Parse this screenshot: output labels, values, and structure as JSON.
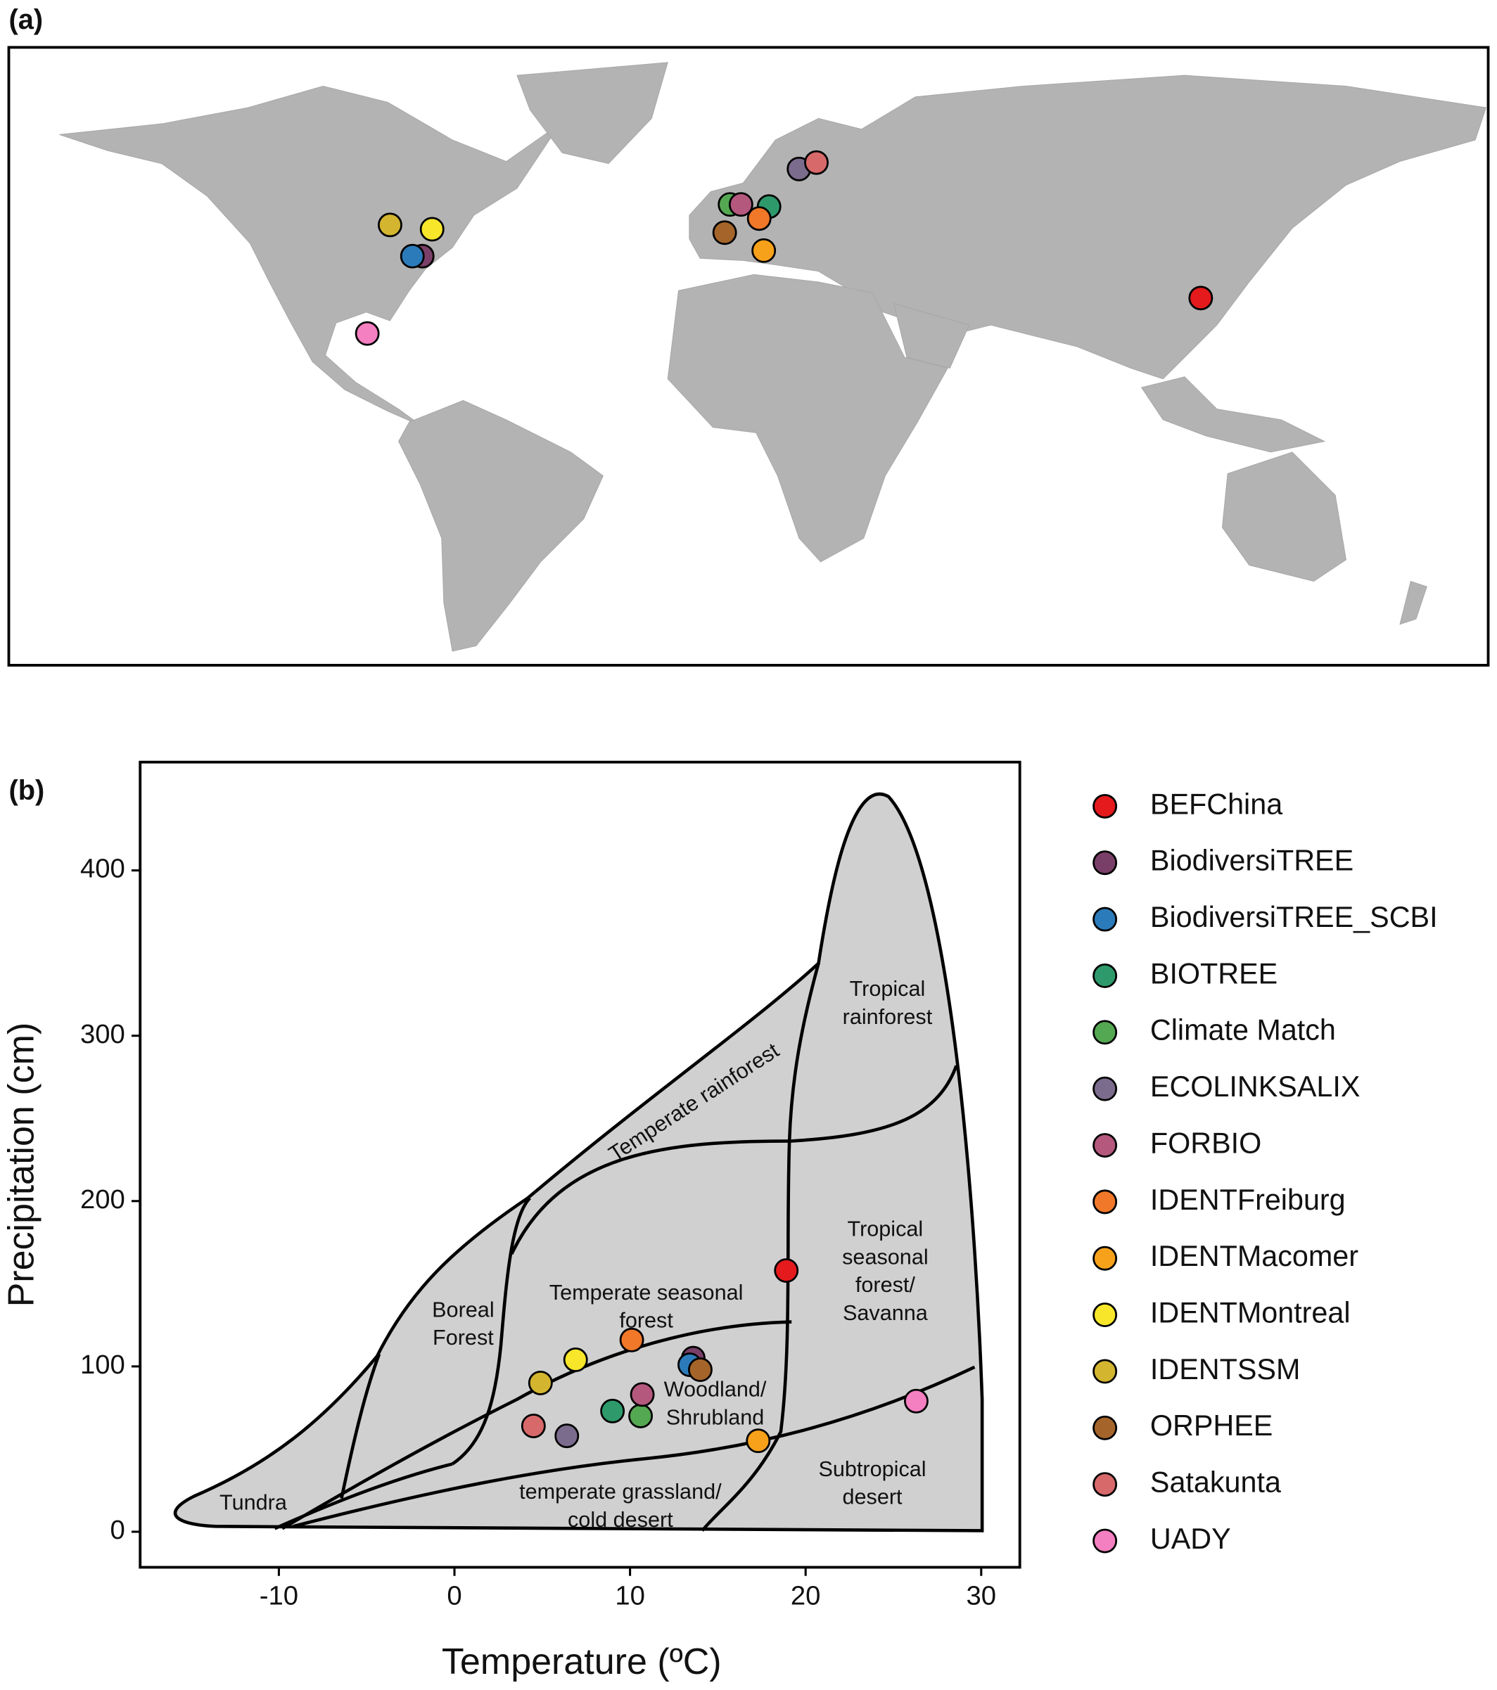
{
  "chart_data": [
    {
      "type": "map",
      "panel_label": "(a)",
      "lon": [
        117.9,
        -87.5,
        -90.1,
        4.0,
        -6.3,
        11.9,
        -3.4,
        1.4,
        2.6,
        -84.9,
        -96.0,
        -7.7,
        16.5,
        -102.0
      ],
      "lat": [
        29.0,
        38.8,
        38.8,
        50.4,
        50.9,
        59.2,
        50.9,
        47.6,
        40.1,
        45.1,
        46.1,
        44.3,
        60.7,
        20.7
      ],
      "colors": [
        "#e41a1c",
        "#7a3f68",
        "#2b7bba",
        "#2e9a6c",
        "#55a852",
        "#7b6b8c",
        "#b4587e",
        "#f07828",
        "#f7a11a",
        "#f7e62a",
        "#d3b52f",
        "#a5652a",
        "#d8696a",
        "#f47fc1"
      ]
    },
    {
      "type": "scatter",
      "panel_label": "(b)",
      "x_label": "Temperature (ºC)",
      "y_label": "Precipitation (cm)",
      "xlim": [
        -17.9,
        32.2
      ],
      "ylim": [
        -21.5,
        465.5
      ],
      "xticks": [
        -10,
        0,
        10,
        20,
        30
      ],
      "yticks": [
        0,
        100,
        200,
        300,
        400
      ],
      "series": [
        {
          "name": "BEFChina",
          "color": "#e41a1c",
          "x": [
            18.9
          ],
          "values": [
            158
          ]
        },
        {
          "name": "BiodiversiTREE",
          "color": "#7a3f68",
          "x": [
            13.6
          ],
          "values": [
            105
          ]
        },
        {
          "name": "BiodiversiTREE_SCBI",
          "color": "#2b7bba",
          "x": [
            13.4
          ],
          "values": [
            101
          ]
        },
        {
          "name": "BIOTREE",
          "color": "#2e9a6c",
          "x": [
            9.0
          ],
          "values": [
            73
          ]
        },
        {
          "name": "Climate Match",
          "color": "#55a852",
          "x": [
            10.6
          ],
          "values": [
            70
          ]
        },
        {
          "name": "ECOLINKSALIX",
          "color": "#7b6b8c",
          "x": [
            6.4
          ],
          "values": [
            58
          ]
        },
        {
          "name": "FORBIO",
          "color": "#b4587e",
          "x": [
            10.7
          ],
          "values": [
            83
          ]
        },
        {
          "name": "IDENTFreiburg",
          "color": "#f07828",
          "x": [
            10.1
          ],
          "values": [
            116
          ]
        },
        {
          "name": "IDENTMacomer",
          "color": "#f7a11a",
          "x": [
            17.3
          ],
          "values": [
            55
          ]
        },
        {
          "name": "IDENTMontreal",
          "color": "#f7e62a",
          "x": [
            6.9
          ],
          "values": [
            104
          ]
        },
        {
          "name": "IDENTSSM",
          "color": "#d3b52f",
          "x": [
            4.9
          ],
          "values": [
            90
          ]
        },
        {
          "name": "ORPHEE",
          "color": "#a5652a",
          "x": [
            14.0
          ],
          "values": [
            98
          ]
        },
        {
          "name": "Satakunta",
          "color": "#d8696a",
          "x": [
            4.5
          ],
          "values": [
            64
          ]
        },
        {
          "name": "UADY",
          "color": "#f47fc1",
          "x": [
            26.3
          ],
          "values": [
            79
          ]
        }
      ],
      "biome_labels": [
        {
          "lines": [
            "Tundra"
          ]
        },
        {
          "lines": [
            "Boreal",
            "Forest"
          ]
        },
        {
          "lines": [
            "Temperate seasonal",
            "forest"
          ]
        },
        {
          "lines": [
            "Temperate rainforest"
          ]
        },
        {
          "lines": [
            "Tropical",
            "rainforest"
          ]
        },
        {
          "lines": [
            "Tropical",
            "seasonal",
            "forest/",
            "Savanna"
          ]
        },
        {
          "lines": [
            "Woodland/",
            "Shrubland"
          ]
        },
        {
          "lines": [
            "temperate grassland/",
            "cold desert"
          ]
        },
        {
          "lines": [
            "Subtropical",
            "desert"
          ]
        }
      ]
    }
  ]
}
